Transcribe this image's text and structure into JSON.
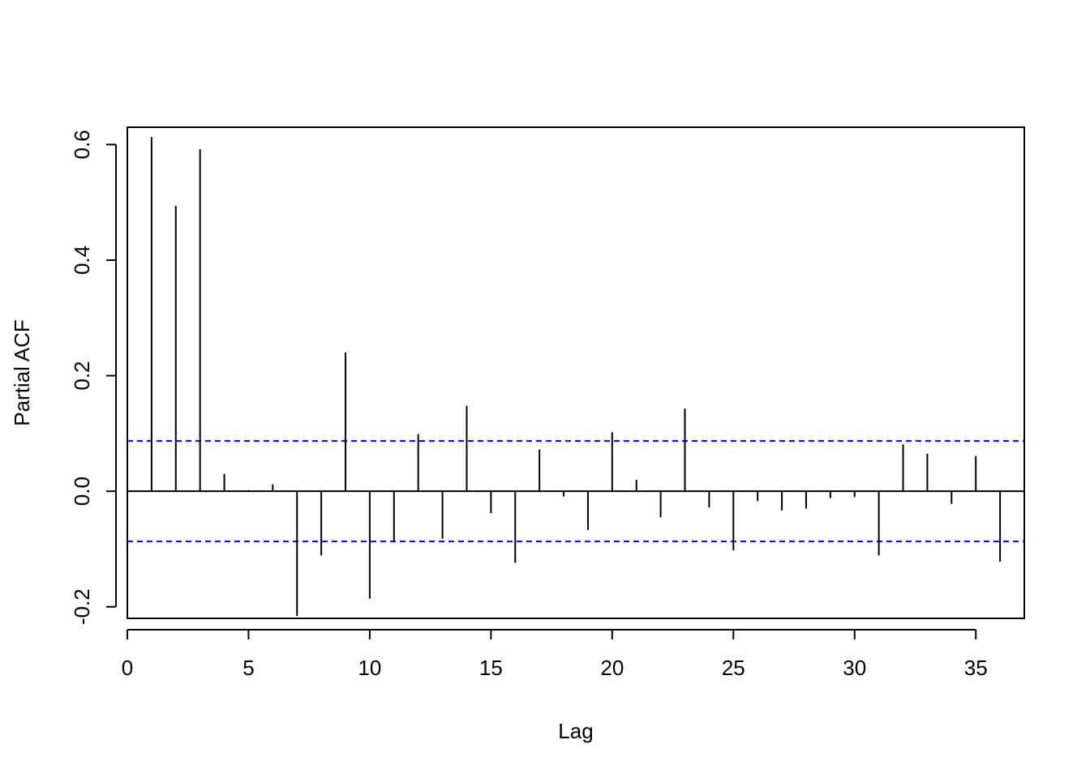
{
  "chart_data": {
    "type": "bar",
    "style": "vertical spikes (R pacf plot)",
    "xlabel": "Lag",
    "ylabel": "Partial ACF",
    "xlim": [
      0,
      37
    ],
    "ylim": [
      -0.22,
      0.63
    ],
    "x_ticks": [
      0,
      5,
      10,
      15,
      20,
      25,
      30,
      35
    ],
    "x_tick_labels": [
      "0",
      "5",
      "10",
      "15",
      "20",
      "25",
      "30",
      "35"
    ],
    "y_ticks": [
      -0.2,
      0.0,
      0.2,
      0.4,
      0.6
    ],
    "y_tick_labels": [
      "-0.2",
      "0.0",
      "0.2",
      "0.4",
      "0.6"
    ],
    "confidence_bounds": [
      0.087,
      -0.087
    ],
    "confidence_color": "#0000ff",
    "zero_line": true,
    "grid": false,
    "lags": [
      1,
      2,
      3,
      4,
      5,
      6,
      7,
      8,
      9,
      10,
      11,
      12,
      13,
      14,
      15,
      16,
      17,
      18,
      19,
      20,
      21,
      22,
      23,
      24,
      25,
      26,
      27,
      28,
      29,
      30,
      31,
      32,
      33,
      34,
      35,
      36
    ],
    "values": [
      0.613,
      0.494,
      0.592,
      0.03,
      0.002,
      0.012,
      -0.216,
      -0.111,
      0.24,
      -0.186,
      -0.088,
      0.099,
      -0.082,
      0.148,
      -0.038,
      -0.124,
      0.072,
      -0.009,
      -0.067,
      0.102,
      0.02,
      -0.045,
      0.143,
      -0.028,
      -0.102,
      -0.017,
      -0.033,
      -0.03,
      -0.012,
      -0.01,
      -0.111,
      0.081,
      0.065,
      -0.022,
      0.061,
      -0.122
    ]
  }
}
